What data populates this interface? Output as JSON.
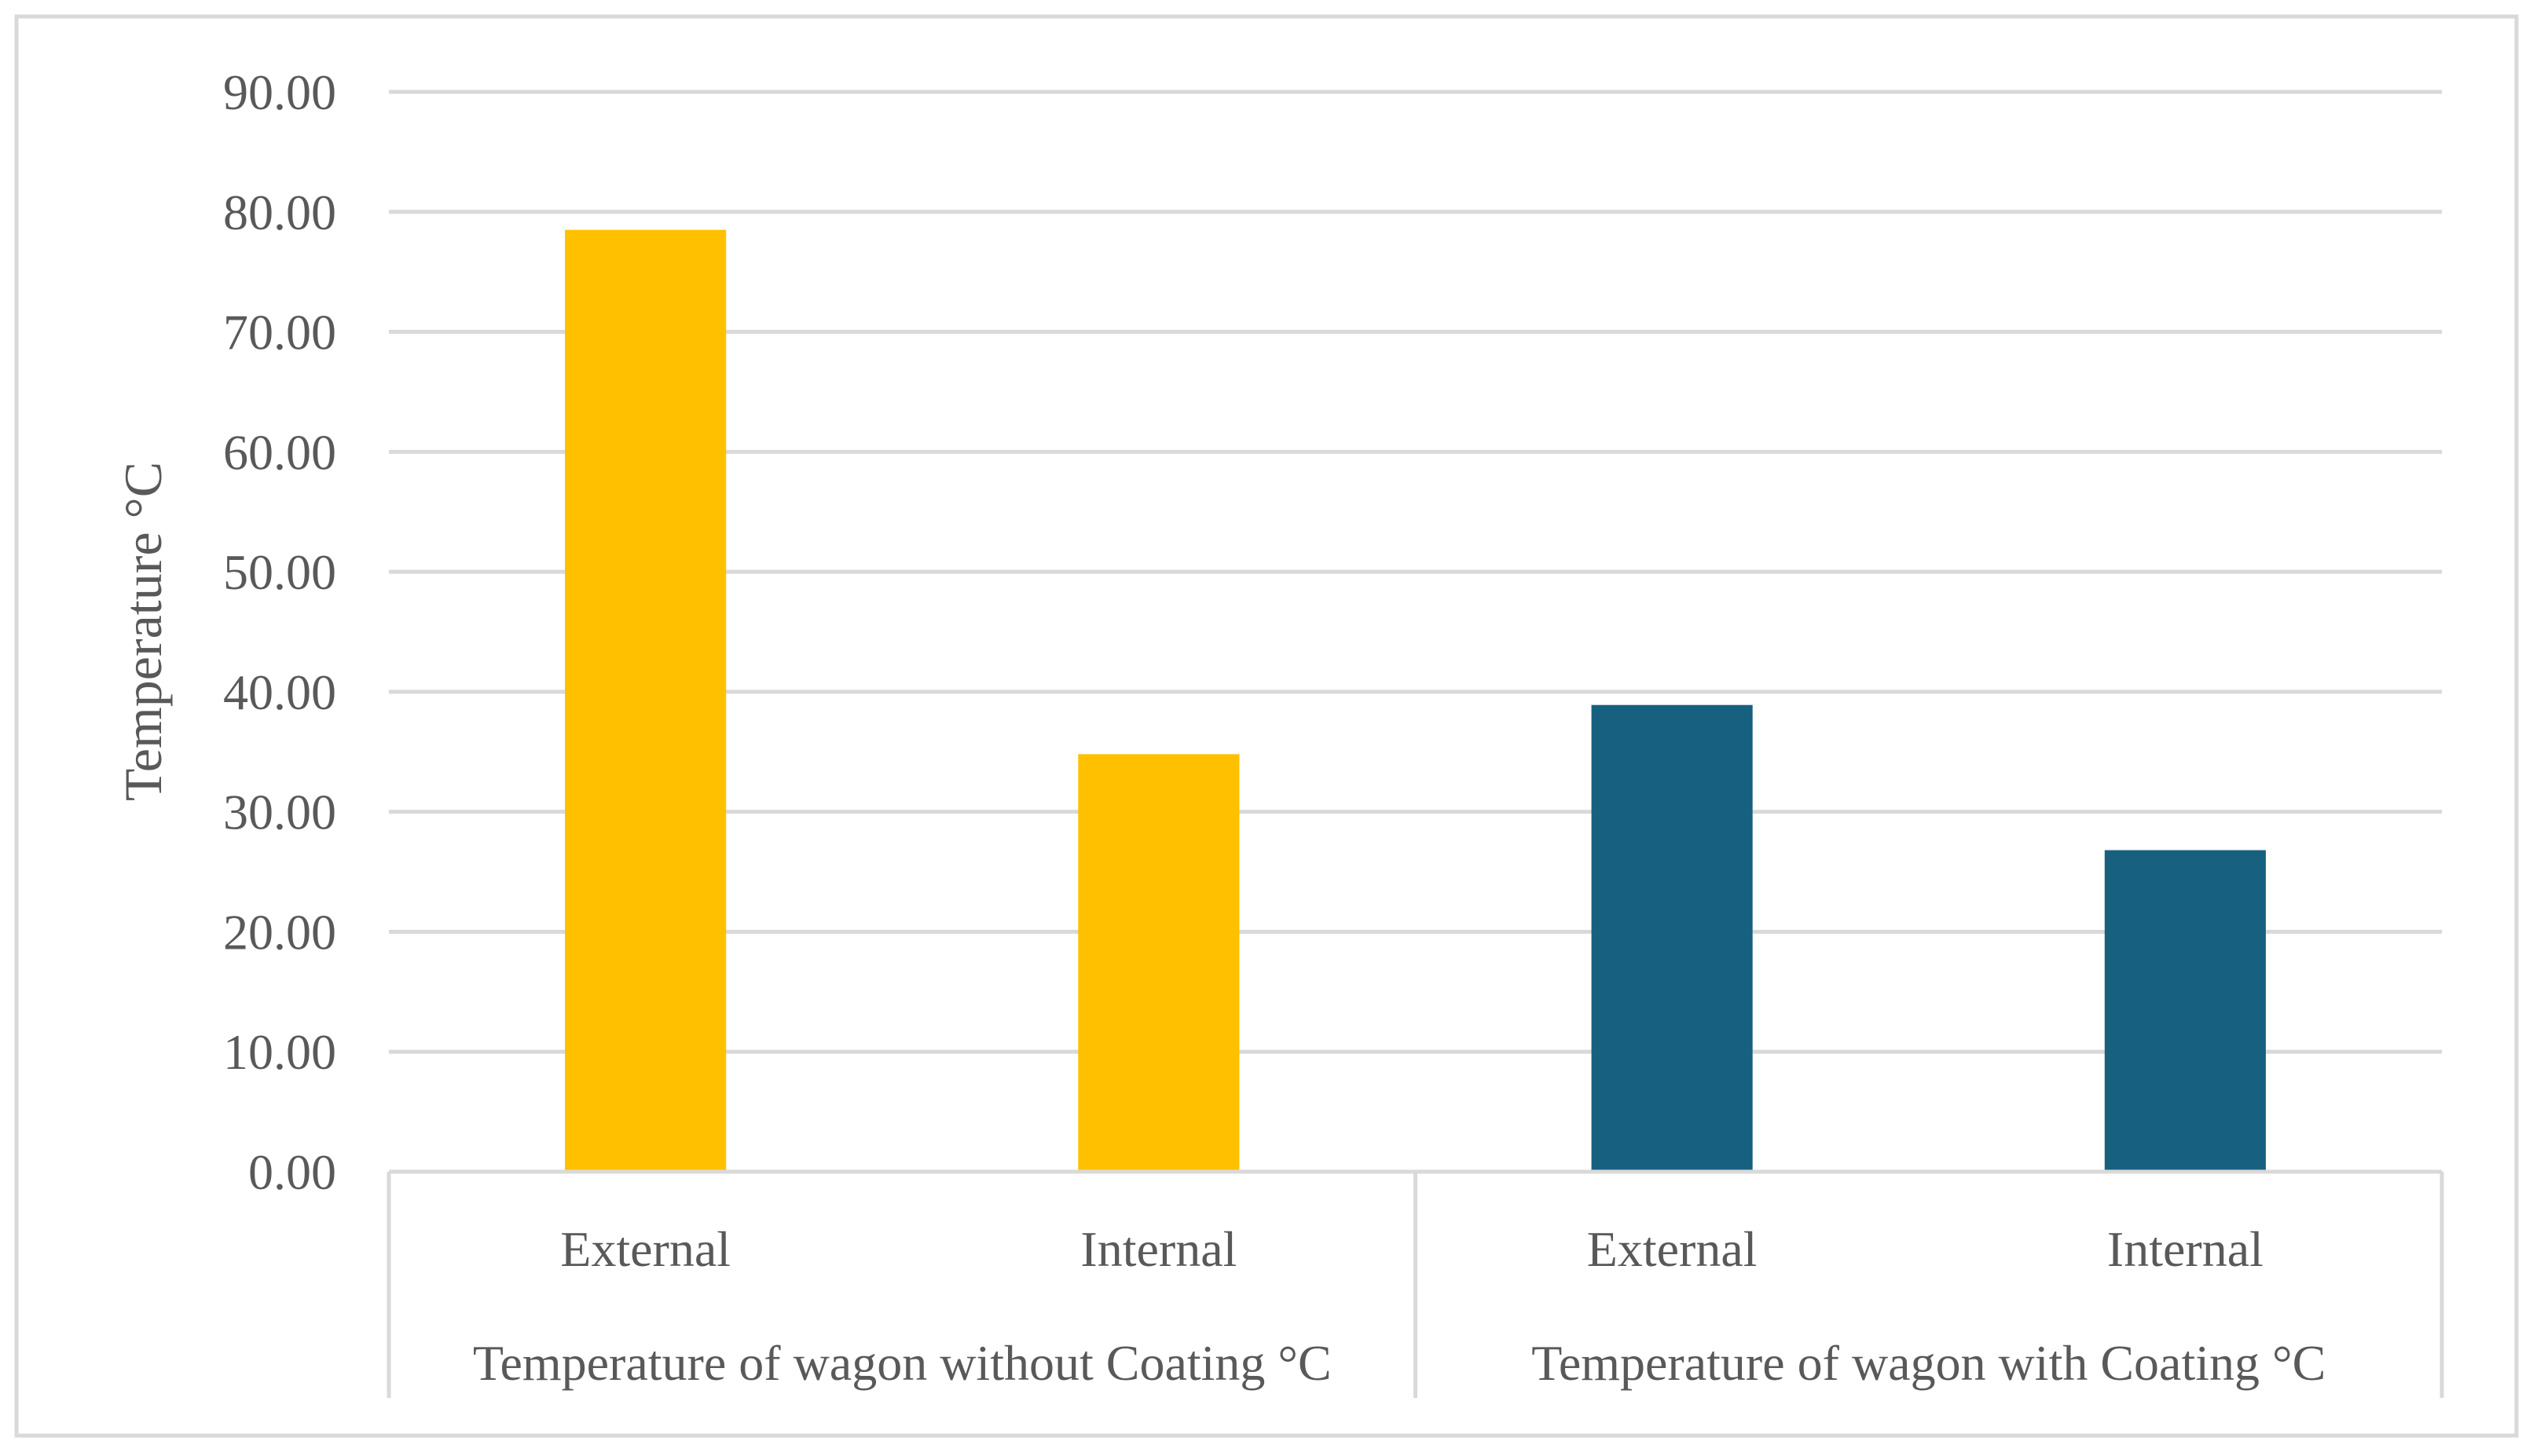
{
  "chart_data": {
    "type": "bar",
    "title": "",
    "ylabel": "Temperature °C",
    "xlabel": "",
    "ylim": [
      0,
      90
    ],
    "ytick_step": 10,
    "ytick_labels": [
      "0.00",
      "10.00",
      "20.00",
      "30.00",
      "40.00",
      "50.00",
      "60.00",
      "70.00",
      "80.00",
      "90.00"
    ],
    "grid": true,
    "legend": "none",
    "groups": [
      {
        "label": "Temperature of wagon without Coating °C",
        "color": "#FFC000",
        "categories": [
          "External",
          "Internal"
        ],
        "values": [
          78.5,
          34.8
        ]
      },
      {
        "label": "Temperature of wagon with Coating °C",
        "color": "#17607F",
        "categories": [
          "External",
          "Internal"
        ],
        "values": [
          38.9,
          26.8
        ]
      }
    ]
  },
  "colors": {
    "gridline": "#D9D9D9",
    "frame": "#D9D9D9",
    "text": "#595959"
  }
}
